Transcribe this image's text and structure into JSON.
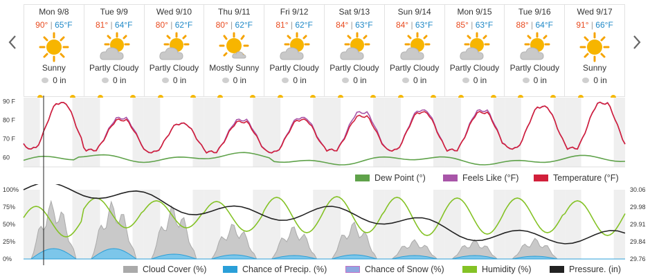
{
  "days": [
    {
      "label": "Mon 9/8",
      "hi": "90°",
      "lo": "65°F",
      "icon": "sunny-icon",
      "cond": "Sunny",
      "precip": "0 in"
    },
    {
      "label": "Tue 9/9",
      "hi": "81°",
      "lo": "64°F",
      "icon": "partly-cloudy-icon",
      "cond": "Partly Cloudy",
      "precip": "0 in"
    },
    {
      "label": "Wed 9/10",
      "hi": "80°",
      "lo": "62°F",
      "icon": "partly-cloudy-icon",
      "cond": "Partly Cloudy",
      "precip": "0 in"
    },
    {
      "label": "Thu 9/11",
      "hi": "80°",
      "lo": "62°F",
      "icon": "mostly-sunny-icon",
      "cond": "Mostly Sunny",
      "precip": "0 in"
    },
    {
      "label": "Fri 9/12",
      "hi": "81°",
      "lo": "62°F",
      "icon": "partly-cloudy-icon",
      "cond": "Partly Cloudy",
      "precip": "0 in"
    },
    {
      "label": "Sat 9/13",
      "hi": "84°",
      "lo": "63°F",
      "icon": "partly-cloudy-icon",
      "cond": "Partly Cloudy",
      "precip": "0 in"
    },
    {
      "label": "Sun 9/14",
      "hi": "84°",
      "lo": "63°F",
      "icon": "partly-cloudy-icon",
      "cond": "Partly Cloudy",
      "precip": "0 in"
    },
    {
      "label": "Mon 9/15",
      "hi": "85°",
      "lo": "63°F",
      "icon": "partly-cloudy-icon",
      "cond": "Partly Cloudy",
      "precip": "0 in"
    },
    {
      "label": "Tue 9/16",
      "hi": "88°",
      "lo": "64°F",
      "icon": "partly-cloudy-icon",
      "cond": "Partly Cloudy",
      "precip": "0 in"
    },
    {
      "label": "Wed 9/17",
      "hi": "91°",
      "lo": "66°F",
      "icon": "sunny-icon",
      "cond": "Sunny",
      "precip": "0 in"
    }
  ],
  "nav": {
    "prev_icon": "chevron-left-icon",
    "next_icon": "chevron-right-icon"
  },
  "chart_data": [
    {
      "type": "line",
      "x": [
        "Mon 9/8",
        "Tue 9/9",
        "Wed 9/10",
        "Thu 9/11",
        "Fri 9/12",
        "Sat 9/13",
        "Sun 9/14",
        "Mon 9/15",
        "Tue 9/16",
        "Wed 9/17"
      ],
      "yaxis_labels": [
        "90 F",
        "80 F",
        "70 F",
        "60"
      ],
      "ylim": [
        55,
        92
      ],
      "daily_max": {
        "Temperature (°F)": [
          89,
          80,
          78,
          79,
          80,
          82,
          84,
          84,
          87,
          89
        ],
        "Feels Like (°F)": [
          89,
          81,
          78,
          80,
          81,
          84,
          85,
          85,
          87,
          89
        ]
      },
      "daily_min": {
        "Temperature (°F)": [
          66,
          65,
          64,
          63,
          63,
          63,
          64,
          64,
          64,
          65
        ]
      },
      "dew_point_range": [
        55,
        62
      ],
      "legend": [
        {
          "label": "Dew Point (°)",
          "color": "#5fa24a"
        },
        {
          "label": "Feels Like (°F)",
          "color": "#a855a8"
        },
        {
          "label": "Temperature (°F)",
          "color": "#d11f3a"
        }
      ],
      "colors": {
        "temperature": "#d11f3a",
        "feels_like": "#a855a8",
        "dew_point": "#5fa24a"
      }
    },
    {
      "type": "line",
      "left_axis": [
        "100%",
        "75%",
        "50%",
        "25%",
        "0%"
      ],
      "right_axis": [
        "30.06",
        "29.98",
        "29.91",
        "29.84",
        "29.76"
      ],
      "humidity_daily_max_pct": [
        76,
        88,
        84,
        83,
        89,
        90,
        89,
        88,
        88,
        84
      ],
      "humidity_daily_min_pct": [
        32,
        45,
        45,
        40,
        38,
        38,
        34,
        36,
        38,
        34
      ],
      "cloud_cover_peaks_pct": [
        85,
        84,
        78,
        52,
        48,
        54,
        28,
        28,
        30,
        0
      ],
      "precip_chance_peaks_pct": [
        15,
        15,
        7,
        6,
        5,
        6,
        5,
        5,
        4,
        0
      ],
      "pressure_in_start": 30.06,
      "pressure_in_end": 29.83,
      "legend": [
        {
          "label": "Cloud Cover (%)",
          "color": "#aaaaaa"
        },
        {
          "label": "Chance of Precip. (%)",
          "color": "#2a9fd8"
        },
        {
          "label": "Chance of Snow (%)",
          "color": "#8fa7e0"
        },
        {
          "label": "Humidity (%)",
          "color": "#84c225"
        },
        {
          "label": "Pressure. (in)",
          "color": "#222222"
        }
      ]
    }
  ]
}
